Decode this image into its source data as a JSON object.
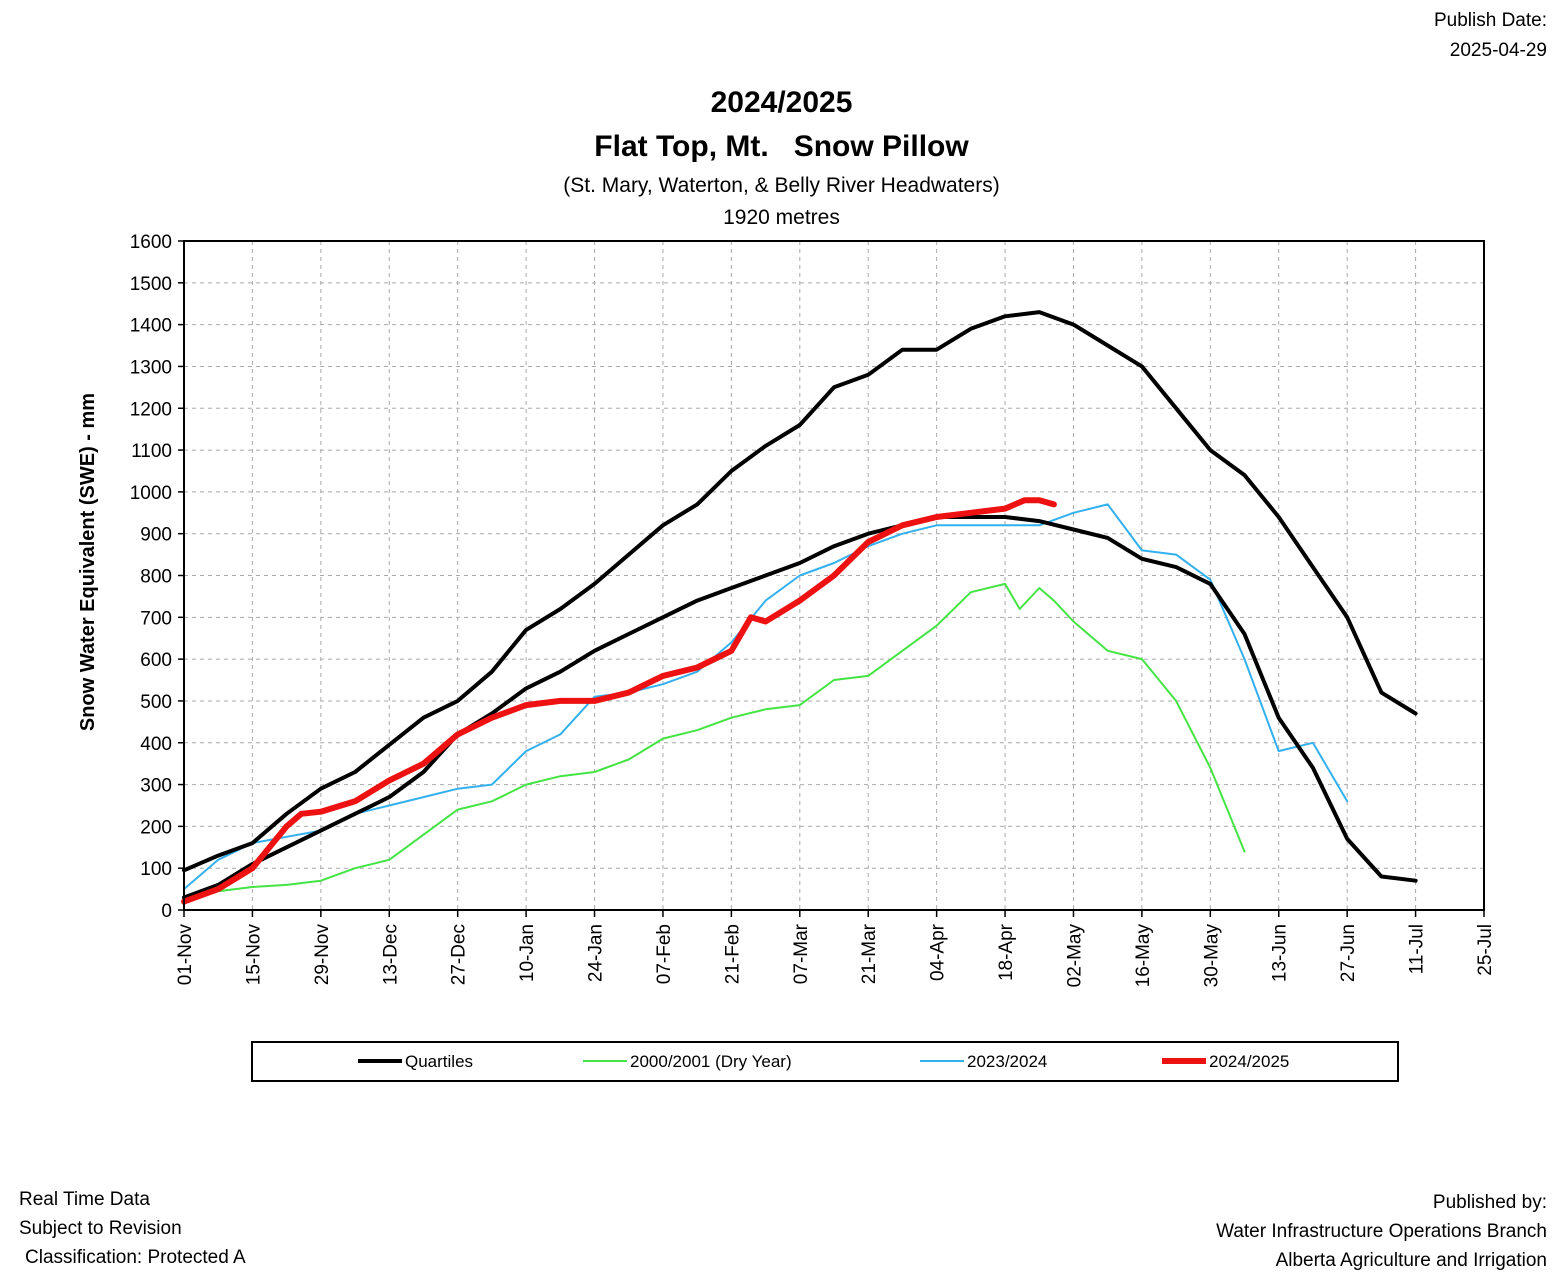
{
  "publish": {
    "label": "Publish Date:",
    "date": "2025-04-29"
  },
  "footer": {
    "left": [
      "Real Time Data",
      "Subject to Revision",
      "Classification: Protected A"
    ],
    "right": [
      "Published by:",
      "Water Infrastructure Operations Branch",
      "Alberta Agriculture and Irrigation"
    ]
  },
  "chart_data": {
    "type": "line",
    "title": "2024/2025",
    "subtitle": "Flat Top, Mt.   Snow Pillow",
    "subtitle2": "(St. Mary, Waterton, & Belly River Headwaters)",
    "subtitle3": "1920 metres",
    "xlabel": "",
    "ylabel": "Snow Water Equivalent (SWE)  -  mm",
    "ylim": [
      0,
      1600
    ],
    "yticks": [
      0,
      100,
      200,
      300,
      400,
      500,
      600,
      700,
      800,
      900,
      1000,
      1100,
      1200,
      1300,
      1400,
      1500,
      1600
    ],
    "xlim": [
      0,
      266
    ],
    "xtick_days": [
      0,
      14,
      28,
      42,
      56,
      70,
      84,
      98,
      112,
      126,
      140,
      154,
      168,
      182,
      196,
      210,
      224,
      238,
      252,
      266
    ],
    "xtick_labels": [
      "01-Nov",
      "15-Nov",
      "29-Nov",
      "13-Dec",
      "27-Dec",
      "10-Jan",
      "24-Jan",
      "07-Feb",
      "21-Feb",
      "07-Mar",
      "21-Mar",
      "04-Apr",
      "18-Apr",
      "02-May",
      "16-May",
      "30-May",
      "13-Jun",
      "27-Jun",
      "11-Jul",
      "25-Jul"
    ],
    "grid": true,
    "legend_position": "bottom",
    "legend": [
      "Quartiles",
      "2000/2001  (Dry Year)",
      "2023/2024",
      "2024/2025"
    ],
    "series": [
      {
        "name": "Quartiles",
        "color": "#000000",
        "width": 4,
        "x": [
          0,
          7,
          14,
          21,
          28,
          35,
          42,
          49,
          56,
          63,
          70,
          77,
          84,
          91,
          98,
          105,
          112,
          119,
          126,
          133,
          140,
          147,
          154,
          161,
          168,
          175,
          182,
          189,
          196,
          203,
          210,
          217,
          224,
          231,
          238,
          245,
          252
        ],
        "y": [
          95,
          130,
          160,
          230,
          290,
          330,
          395,
          460,
          500,
          570,
          670,
          720,
          780,
          850,
          920,
          970,
          1050,
          1110,
          1160,
          1250,
          1280,
          1340,
          1340,
          1390,
          1420,
          1430,
          1400,
          1350,
          1300,
          1200,
          1100,
          1040,
          940,
          820,
          700,
          520,
          470
        ]
      },
      {
        "name": "Quartiles",
        "color": "#000000",
        "width": 4,
        "x": [
          0,
          7,
          14,
          21,
          28,
          35,
          42,
          49,
          56,
          63,
          70,
          77,
          84,
          91,
          98,
          105,
          112,
          119,
          126,
          133,
          140,
          147,
          154,
          161,
          168,
          175,
          182,
          189,
          196,
          203,
          210,
          217,
          224,
          231,
          238,
          245,
          252
        ],
        "y": [
          30,
          60,
          110,
          150,
          190,
          230,
          270,
          330,
          420,
          470,
          530,
          570,
          620,
          660,
          700,
          740,
          770,
          800,
          830,
          870,
          900,
          920,
          940,
          940,
          940,
          930,
          910,
          890,
          840,
          820,
          780,
          660,
          460,
          340,
          170,
          80,
          70
        ]
      },
      {
        "name": "2000/2001  (Dry Year)",
        "color": "#44e444",
        "width": 2,
        "x": [
          0,
          7,
          14,
          21,
          28,
          35,
          42,
          49,
          56,
          63,
          70,
          77,
          84,
          91,
          98,
          105,
          112,
          119,
          126,
          133,
          140,
          147,
          154,
          161,
          168,
          171,
          175,
          178,
          182,
          189,
          196,
          203,
          210,
          217
        ],
        "y": [
          25,
          45,
          55,
          60,
          70,
          100,
          120,
          180,
          240,
          260,
          300,
          320,
          330,
          360,
          410,
          430,
          460,
          480,
          490,
          550,
          560,
          620,
          680,
          760,
          780,
          720,
          770,
          740,
          690,
          620,
          600,
          500,
          340,
          140
        ]
      },
      {
        "name": "2023/2024",
        "color": "#33b0ee",
        "width": 2,
        "x": [
          0,
          7,
          14,
          21,
          28,
          35,
          42,
          49,
          56,
          63,
          70,
          77,
          84,
          91,
          98,
          105,
          112,
          119,
          126,
          133,
          140,
          147,
          154,
          161,
          168,
          175,
          182,
          189,
          196,
          203,
          210,
          217,
          224,
          231,
          238
        ],
        "y": [
          50,
          120,
          160,
          175,
          190,
          230,
          250,
          270,
          290,
          300,
          380,
          420,
          510,
          520,
          540,
          570,
          640,
          740,
          800,
          830,
          870,
          900,
          920,
          920,
          920,
          920,
          950,
          970,
          860,
          850,
          790,
          600,
          380,
          400,
          260
        ]
      },
      {
        "name": "2024/2025",
        "color": "#ee1111",
        "width": 6,
        "x": [
          0,
          7,
          14,
          21,
          24,
          28,
          35,
          42,
          49,
          56,
          63,
          70,
          77,
          84,
          91,
          98,
          105,
          112,
          116,
          119,
          126,
          133,
          140,
          147,
          154,
          161,
          168,
          172,
          175,
          178
        ],
        "y": [
          20,
          50,
          100,
          200,
          230,
          235,
          260,
          310,
          350,
          420,
          460,
          490,
          500,
          500,
          520,
          560,
          580,
          620,
          700,
          690,
          740,
          800,
          880,
          920,
          940,
          950,
          960,
          980,
          980,
          970
        ]
      }
    ]
  }
}
